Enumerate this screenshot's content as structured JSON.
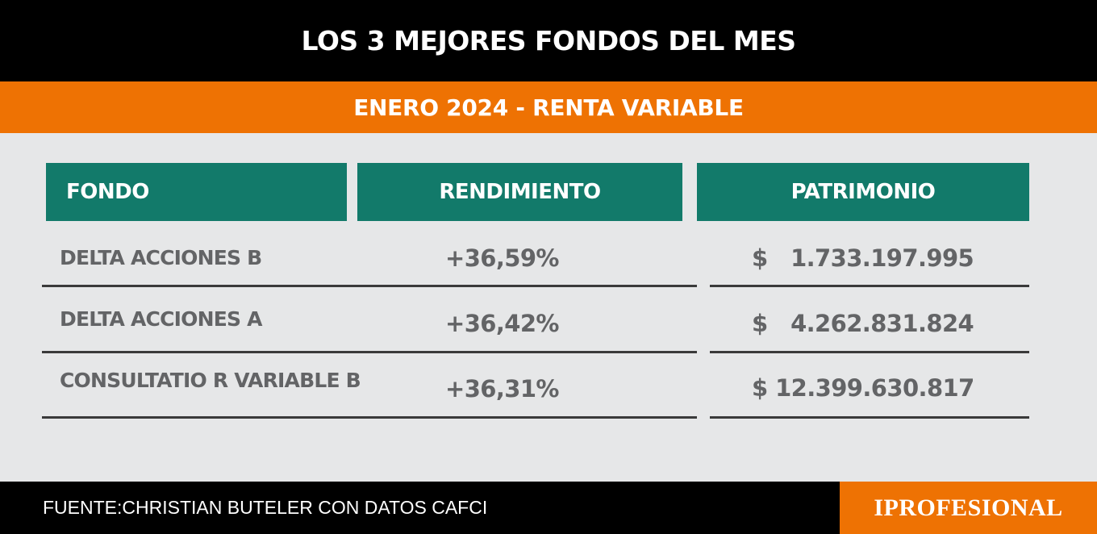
{
  "title": "LOS 3 MEJORES FONDOS DEL MES",
  "subtitle": "ENERO 2024 - RENTA VARIABLE",
  "table": {
    "headers": [
      "FONDO",
      "RENDIMIENTO",
      "PATRIMONIO"
    ],
    "rows": [
      {
        "fondo": "DELTA ACCIONES B",
        "rendimiento": "+36,59%",
        "patrimonio": "$   1.733.197.995"
      },
      {
        "fondo": "DELTA ACCIONES A",
        "rendimiento": "+36,42%",
        "patrimonio": "$   4.262.831.824"
      },
      {
        "fondo": "CONSULTATIO R VARIABLE B",
        "rendimiento": "+36,31%",
        "patrimonio": "$ 12.399.630.817"
      }
    ]
  },
  "footer": {
    "source": "FUENTE:CHRISTIAN BUTELER CON DATOS CAFCI",
    "brand": "IPROFESIONAL"
  },
  "colors": {
    "header_bg": "#000000",
    "accent": "#ee7203",
    "table_header": "#127a6a",
    "text": "#636466",
    "background": "#e6e7e8"
  }
}
